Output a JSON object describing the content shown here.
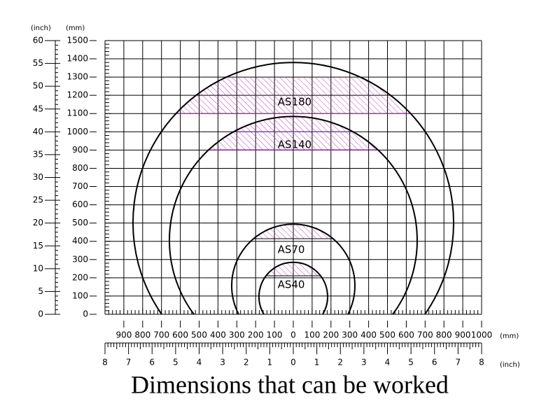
{
  "left_axis": {
    "inch_unit": "(inch)",
    "mm_unit": "(mm)",
    "inch_ticks": [
      "0",
      "5",
      "10",
      "15",
      "20",
      "25",
      "30",
      "35",
      "40",
      "45",
      "50",
      "55",
      "60"
    ],
    "mm_ticks": [
      "0",
      "100",
      "200",
      "300",
      "400",
      "500",
      "600",
      "700",
      "800",
      "900",
      "1000",
      "1100",
      "1200",
      "1300",
      "1400",
      "1500"
    ]
  },
  "bottom_axis": {
    "mm_unit": "(mm)",
    "inch_unit": "(inch)",
    "mm_ticks": [
      "900",
      "800",
      "700",
      "600",
      "500",
      "400",
      "300",
      "200",
      "100",
      "0",
      "100",
      "200",
      "300",
      "400",
      "500",
      "600",
      "700",
      "800",
      "900",
      "1000"
    ],
    "inch_ticks": [
      "8",
      "7",
      "6",
      "5",
      "4",
      "3",
      "2",
      "1",
      "0",
      "1",
      "2",
      "3",
      "4",
      "5",
      "6",
      "7",
      "8"
    ]
  },
  "regions": [
    {
      "label": "AS180"
    },
    {
      "label": "AS140"
    },
    {
      "label": "AS70"
    },
    {
      "label": "AS40"
    }
  ],
  "caption": "Dimensions that can be worked"
}
